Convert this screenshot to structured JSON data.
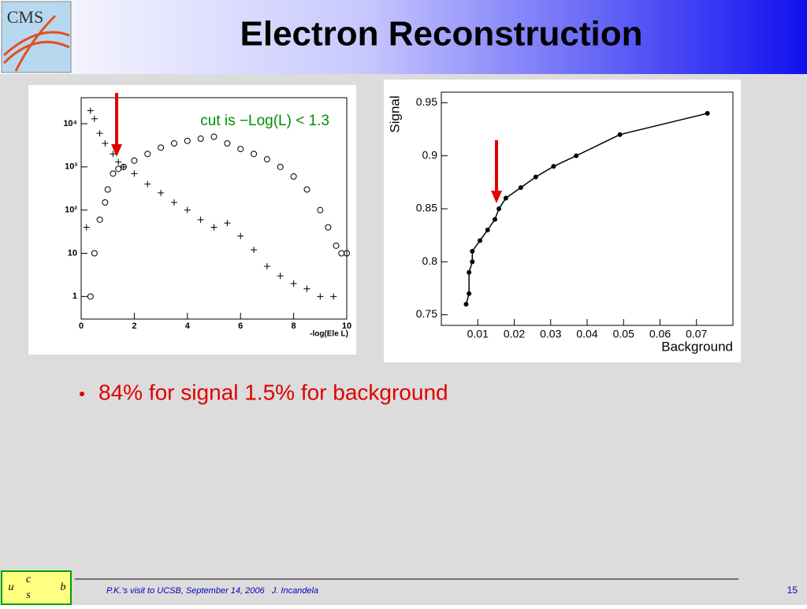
{
  "title": "Electron Reconstruction",
  "logo_text": "CMS",
  "ucsb_letters": [
    "u",
    "c",
    "s",
    "b"
  ],
  "bullets": [
    "84% for signal 1.5% for background"
  ],
  "footer": {
    "text": "P.K.'s visit to UCSB, September 14, 2006   J. Incandela",
    "page": "15"
  },
  "chart_data": [
    {
      "type": "scatter",
      "annotation": "cut is −Log(L) < 1.3",
      "xlabel": "-log(Ele L)",
      "xlim": [
        0,
        10
      ],
      "xticks": [
        0,
        2,
        4,
        6,
        8,
        10
      ],
      "ylim": [
        0.3,
        40000
      ],
      "log_y": true,
      "yticks": [
        1,
        10,
        {
          "value": 100,
          "label": "10²"
        },
        {
          "value": 1000,
          "label": "10³"
        },
        {
          "value": 10000,
          "label": "10⁴"
        }
      ],
      "series": [
        {
          "marker": "o",
          "color": "#000000",
          "x": [
            0.35,
            0.5,
            0.7,
            0.9,
            1.0,
            1.2,
            1.4,
            1.6,
            2.0,
            2.5,
            3.0,
            3.5,
            4.0,
            4.5,
            5.0,
            5.5,
            6.0,
            6.5,
            7.0,
            7.5,
            8.0,
            8.5,
            9.0,
            9.3,
            9.6,
            9.8,
            10
          ],
          "values": [
            1,
            10,
            60,
            150,
            300,
            700,
            900,
            1000,
            1400,
            2000,
            2800,
            3500,
            4000,
            4500,
            5000,
            3500,
            2600,
            2000,
            1500,
            1000,
            600,
            300,
            100,
            40,
            15,
            10,
            10
          ]
        },
        {
          "marker": "+",
          "color": "#000000",
          "x": [
            0.2,
            0.35,
            0.5,
            0.7,
            0.9,
            1.2,
            1.4,
            1.6,
            2.0,
            2.5,
            3.0,
            3.5,
            4.0,
            4.5,
            5.0,
            5.5,
            6.0,
            6.5,
            7.0,
            7.5,
            8.0,
            8.5,
            9.0,
            9.5
          ],
          "values": [
            40,
            20000,
            13000,
            6000,
            3500,
            2000,
            1300,
            1000,
            700,
            400,
            250,
            150,
            100,
            60,
            40,
            50,
            25,
            12,
            5,
            3,
            2,
            1.5,
            1,
            1
          ]
        }
      ]
    },
    {
      "type": "line",
      "xlabel": "Background",
      "ylabel": "Signal",
      "xlim": [
        0,
        0.08
      ],
      "xticks": [
        0.01,
        0.02,
        0.03,
        0.04,
        0.05,
        0.06,
        0.07
      ],
      "ylim": [
        0.74,
        0.96
      ],
      "yticks": [
        0.75,
        0.8,
        0.85,
        0.9,
        0.95
      ],
      "series": [
        {
          "color": "#000000",
          "x": [
            0.0068,
            0.0076,
            0.0076,
            0.0085,
            0.0085,
            0.0106,
            0.0127,
            0.0147,
            0.0158,
            0.0177,
            0.0218,
            0.0259,
            0.0308,
            0.037,
            0.049,
            0.073
          ],
          "values": [
            0.76,
            0.77,
            0.79,
            0.8,
            0.81,
            0.82,
            0.83,
            0.84,
            0.85,
            0.86,
            0.87,
            0.88,
            0.89,
            0.9,
            0.92,
            0.94
          ]
        }
      ]
    }
  ]
}
